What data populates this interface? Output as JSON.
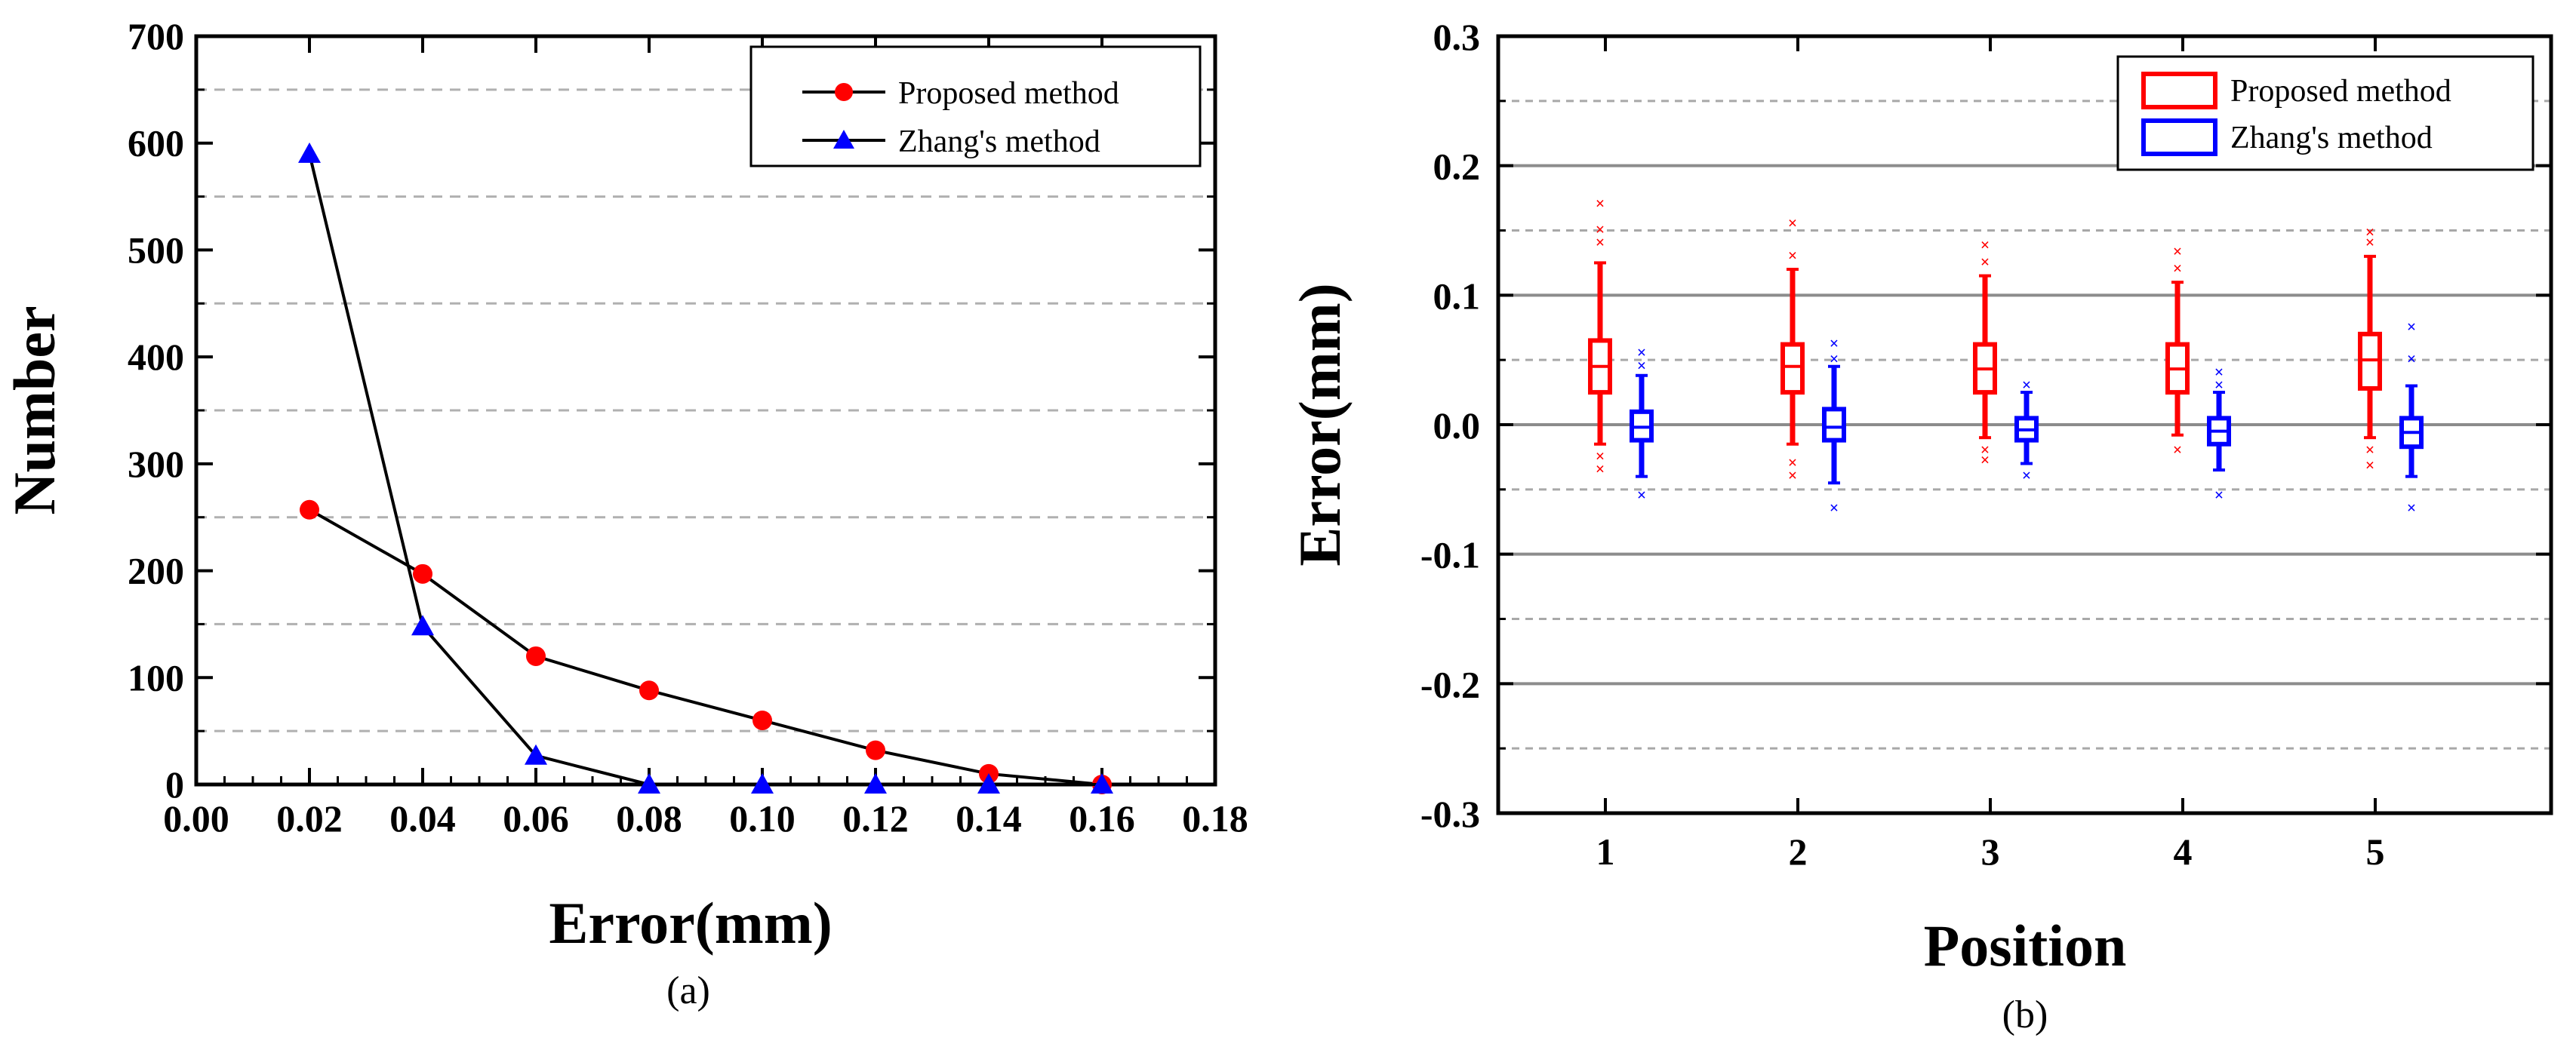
{
  "chart_data": [
    {
      "type": "line",
      "caption": "(a)",
      "title": "",
      "xlabel": "Error(mm)",
      "ylabel": "Number",
      "xlim": [
        0.0,
        0.18
      ],
      "ylim": [
        0,
        700
      ],
      "x_ticks": [
        "0.00",
        "0.02",
        "0.04",
        "0.06",
        "0.08",
        "0.10",
        "0.12",
        "0.14",
        "0.16",
        "0.18"
      ],
      "y_ticks": [
        "0",
        "100",
        "200",
        "300",
        "400",
        "500",
        "600",
        "700"
      ],
      "grid": "dashed horizontal at odd multiples of 50",
      "legend": "top-right",
      "series": [
        {
          "name": "Proposed method",
          "color": "#ff0000",
          "marker": "circle",
          "x": [
            0.02,
            0.04,
            0.06,
            0.08,
            0.1,
            0.12,
            0.14,
            0.16
          ],
          "y": [
            257,
            197,
            120,
            88,
            60,
            32,
            10,
            0
          ]
        },
        {
          "name": "Zhang's method",
          "color": "#0000ff",
          "marker": "triangle",
          "x": [
            0.02,
            0.04,
            0.06,
            0.08,
            0.1,
            0.12,
            0.14,
            0.16
          ],
          "y": [
            590,
            148,
            27,
            0,
            0,
            0,
            0,
            0
          ]
        }
      ]
    },
    {
      "type": "box",
      "caption": "(b)",
      "title": "",
      "xlabel": "Position",
      "ylabel": "Error(mm)",
      "categories": [
        "1",
        "2",
        "3",
        "4",
        "5"
      ],
      "ylim": [
        -0.3,
        0.3
      ],
      "y_ticks": [
        "-0.3",
        "-0.2",
        "-0.1",
        "0.0",
        "0.1",
        "0.2",
        "0.3"
      ],
      "grid": "solid at major ticks, dashed at half ticks",
      "legend": "top-right",
      "series": [
        {
          "name": "Proposed method",
          "color": "#ff0000",
          "boxes": [
            {
              "q1": 0.025,
              "median": 0.045,
              "q3": 0.065,
              "whisker_low": -0.015,
              "whisker_high": 0.125,
              "outliers": [
                -0.035,
                -0.025,
                0.14,
                0.15,
                0.17
              ]
            },
            {
              "q1": 0.025,
              "median": 0.045,
              "q3": 0.062,
              "whisker_low": -0.015,
              "whisker_high": 0.12,
              "outliers": [
                -0.04,
                -0.03,
                0.13,
                0.155
              ]
            },
            {
              "q1": 0.025,
              "median": 0.043,
              "q3": 0.062,
              "whisker_low": -0.01,
              "whisker_high": 0.115,
              "outliers": [
                -0.028,
                -0.02,
                0.125,
                0.138
              ]
            },
            {
              "q1": 0.025,
              "median": 0.043,
              "q3": 0.062,
              "whisker_low": -0.008,
              "whisker_high": 0.11,
              "outliers": [
                -0.02,
                0.12,
                0.133
              ]
            },
            {
              "q1": 0.028,
              "median": 0.05,
              "q3": 0.07,
              "whisker_low": -0.01,
              "whisker_high": 0.13,
              "outliers": [
                -0.032,
                -0.02,
                0.14,
                0.148
              ]
            }
          ]
        },
        {
          "name": "Zhang's method",
          "color": "#0000ff",
          "boxes": [
            {
              "q1": -0.012,
              "median": -0.002,
              "q3": 0.01,
              "whisker_low": -0.04,
              "whisker_high": 0.038,
              "outliers": [
                -0.055,
                0.045,
                0.055
              ]
            },
            {
              "q1": -0.012,
              "median": -0.002,
              "q3": 0.012,
              "whisker_low": -0.045,
              "whisker_high": 0.045,
              "outliers": [
                -0.065,
                0.05,
                0.062
              ]
            },
            {
              "q1": -0.012,
              "median": -0.004,
              "q3": 0.005,
              "whisker_low": -0.03,
              "whisker_high": 0.025,
              "outliers": [
                -0.04,
                0.03
              ]
            },
            {
              "q1": -0.015,
              "median": -0.005,
              "q3": 0.005,
              "whisker_low": -0.035,
              "whisker_high": 0.025,
              "outliers": [
                -0.055,
                0.03,
                0.04
              ]
            },
            {
              "q1": -0.017,
              "median": -0.006,
              "q3": 0.005,
              "whisker_low": -0.04,
              "whisker_high": 0.03,
              "outliers": [
                -0.065,
                0.05,
                0.075
              ]
            }
          ]
        }
      ]
    }
  ]
}
